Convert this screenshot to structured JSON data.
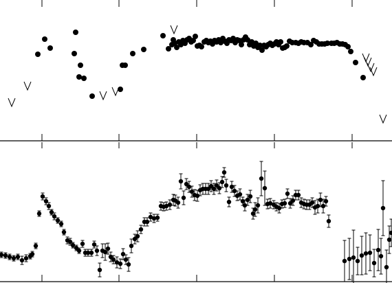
{
  "chart_data": [
    {
      "type": "scatter",
      "title": "",
      "xlabel": "",
      "ylabel": "",
      "xlim": [
        0,
        570
      ],
      "ylim": [
        0,
        205
      ],
      "grid": false,
      "series": [
        {
          "marker": "circle",
          "points": [
            [
              55,
              126
            ],
            [
              65,
              148
            ],
            [
              73,
              135
            ],
            [
              110,
              158
            ],
            [
              108,
              127
            ],
            [
              117,
              110
            ],
            [
              115,
              93
            ],
            [
              122,
              91
            ],
            [
              134,
              65
            ],
            [
              175,
              75
            ],
            [
              178,
              110
            ],
            [
              182,
              110
            ],
            [
              193,
              127
            ],
            [
              209,
              133
            ],
            [
              237,
              153
            ],
            [
              245,
              134
            ],
            [
              250,
              140
            ],
            [
              252,
              147
            ],
            [
              254,
              142
            ],
            [
              257,
              136
            ],
            [
              260,
              144
            ],
            [
              263,
              140
            ],
            [
              266,
              146
            ],
            [
              269,
              142
            ],
            [
              272,
              147
            ],
            [
              275,
              149
            ],
            [
              278,
              144
            ],
            [
              281,
              146
            ],
            [
              284,
              152
            ],
            [
              287,
              138
            ],
            [
              290,
              139
            ],
            [
              293,
              137
            ],
            [
              297,
              144
            ],
            [
              300,
              146
            ],
            [
              303,
              143
            ],
            [
              306,
              145
            ],
            [
              309,
              141
            ],
            [
              312,
              146
            ],
            [
              315,
              144
            ],
            [
              318,
              147
            ],
            [
              321,
              143
            ],
            [
              324,
              149
            ],
            [
              327,
              145
            ],
            [
              330,
              142
            ],
            [
              333,
              147
            ],
            [
              336,
              146
            ],
            [
              339,
              149
            ],
            [
              342,
              143
            ],
            [
              345,
              147
            ],
            [
              348,
              146
            ],
            [
              351,
              140
            ],
            [
              354,
              147
            ],
            [
              357,
              151
            ],
            [
              360,
              147
            ],
            [
              363,
              140
            ],
            [
              366,
              144
            ],
            [
              369,
              138
            ],
            [
              372,
              142
            ],
            [
              375,
              136
            ],
            [
              378,
              139
            ],
            [
              381,
              132
            ],
            [
              384,
              139
            ],
            [
              387,
              137
            ],
            [
              390,
              140
            ],
            [
              393,
              142
            ],
            [
              396,
              139
            ],
            [
              399,
              141
            ],
            [
              402,
              144
            ],
            [
              405,
              140
            ],
            [
              408,
              144
            ],
            [
              411,
              135
            ],
            [
              414,
              136
            ],
            [
              417,
              138
            ],
            [
              421,
              145
            ],
            [
              425,
              143
            ],
            [
              430,
              143
            ],
            [
              434,
              142
            ],
            [
              438,
              144
            ],
            [
              442,
              143
            ],
            [
              447,
              143
            ],
            [
              452,
              140
            ],
            [
              456,
              146
            ],
            [
              460,
              144
            ],
            [
              464,
              141
            ],
            [
              468,
              141
            ],
            [
              472,
              141
            ],
            [
              476,
              142
            ],
            [
              482,
              142
            ],
            [
              486,
              142
            ],
            [
              490,
              143
            ],
            [
              494,
              141
            ],
            [
              498,
              141
            ],
            [
              502,
              140
            ],
            [
              506,
              137
            ],
            [
              510,
              130
            ],
            [
              517,
              114
            ],
            [
              528,
              92
            ]
          ]
        },
        {
          "marker": "upper-limit",
          "points": [
            [
              17,
              56
            ],
            [
              40,
              80
            ],
            [
              150,
              66
            ],
            [
              168,
              72
            ],
            [
              253,
              162
            ],
            [
              532,
              121
            ],
            [
              535,
              115
            ],
            [
              539,
              107
            ],
            [
              543,
              101
            ],
            [
              557,
              32
            ]
          ]
        }
      ]
    },
    {
      "type": "scatter",
      "title": "",
      "xlabel": "",
      "ylabel": "",
      "xlim": [
        0,
        570
      ],
      "ylim": [
        0,
        205
      ],
      "grid": false,
      "series": [
        {
          "marker": "circle-errorbar",
          "points": [
            [
              2,
              41,
              4
            ],
            [
              8,
              40,
              4
            ],
            [
              14,
              38,
              4
            ],
            [
              20,
              36,
              4
            ],
            [
              26,
              38,
              4
            ],
            [
              32,
              33,
              6
            ],
            [
              38,
              36,
              5
            ],
            [
              44,
              39,
              4
            ],
            [
              47,
              42,
              4
            ],
            [
              52,
              54,
              4
            ],
            [
              57,
              101,
              4
            ],
            [
              62,
              126,
              5
            ],
            [
              67,
              119,
              5
            ],
            [
              71,
              112,
              5
            ],
            [
              75,
              103,
              4
            ],
            [
              79,
              97,
              5
            ],
            [
              84,
              91,
              4
            ],
            [
              89,
              86,
              4
            ],
            [
              93,
              74,
              4
            ],
            [
              98,
              62,
              5
            ],
            [
              102,
              60,
              5
            ],
            [
              106,
              55,
              4
            ],
            [
              111,
              51,
              4
            ],
            [
              115,
              47,
              4
            ],
            [
              120,
              57,
              5
            ],
            [
              124,
              44,
              5
            ],
            [
              128,
              44,
              5
            ],
            [
              133,
              44,
              5
            ],
            [
              137,
              56,
              5
            ],
            [
              141,
              47,
              7
            ],
            [
              145,
              19,
              10
            ],
            [
              149,
              47,
              10
            ],
            [
              153,
              45,
              12
            ],
            [
              157,
              50,
              8
            ],
            [
              161,
              38,
              7
            ],
            [
              165,
              34,
              6
            ],
            [
              170,
              30,
              8
            ],
            [
              175,
              28,
              7
            ],
            [
              179,
              42,
              8
            ],
            [
              183,
              34,
              7
            ],
            [
              187,
              27,
              10
            ],
            [
              191,
              54,
              10
            ],
            [
              196,
              64,
              7
            ],
            [
              200,
              68,
              8
            ],
            [
              205,
              78,
              6
            ],
            [
              210,
              89,
              6
            ],
            [
              214,
              89,
              6
            ],
            [
              219,
              96,
              6
            ],
            [
              224,
              94,
              6
            ],
            [
              229,
              95,
              5
            ],
            [
              234,
              112,
              6
            ],
            [
              238,
              111,
              6
            ],
            [
              242,
              112,
              6
            ],
            [
              247,
              114,
              7
            ],
            [
              252,
              121,
              8
            ],
            [
              255,
              120,
              8
            ],
            [
              259,
              117,
              8
            ],
            [
              263,
              148,
              11
            ],
            [
              267,
              124,
              10
            ],
            [
              271,
              144,
              8
            ],
            [
              275,
              140,
              8
            ],
            [
              279,
              133,
              8
            ],
            [
              283,
              128,
              8
            ],
            [
              287,
              127,
              8
            ],
            [
              291,
              135,
              8
            ],
            [
              295,
              137,
              8
            ],
            [
              299,
              137,
              8
            ],
            [
              303,
              137,
              8
            ],
            [
              307,
              141,
              8
            ],
            [
              311,
              137,
              8
            ],
            [
              315,
              142,
              8
            ],
            [
              319,
              138,
              8
            ],
            [
              323,
              147,
              8
            ],
            [
              326,
              161,
              7
            ],
            [
              329,
              142,
              9
            ],
            [
              333,
              118,
              7
            ],
            [
              337,
              140,
              8
            ],
            [
              341,
              134,
              8
            ],
            [
              345,
              127,
              7
            ],
            [
              349,
              129,
              8
            ],
            [
              353,
              119,
              6
            ],
            [
              356,
              113,
              8
            ],
            [
              360,
              121,
              8
            ],
            [
              364,
              126,
              9
            ],
            [
              368,
              101,
              8
            ],
            [
              371,
              107,
              10
            ],
            [
              375,
              113,
              11
            ],
            [
              380,
              152,
              25
            ],
            [
              385,
              138,
              25
            ],
            [
              389,
              115,
              7
            ],
            [
              393,
              116,
              7
            ],
            [
              398,
              114,
              6
            ],
            [
              402,
              111,
              6
            ],
            [
              406,
              109,
              7
            ],
            [
              410,
              115,
              6
            ],
            [
              414,
              116,
              6
            ],
            [
              418,
              130,
              7
            ],
            [
              422,
              116,
              7
            ],
            [
              426,
              120,
              7
            ],
            [
              430,
              128,
              7
            ],
            [
              434,
              128,
              7
            ],
            [
              438,
              117,
              7
            ],
            [
              442,
              115,
              7
            ],
            [
              446,
              114,
              7
            ],
            [
              450,
              114,
              7
            ],
            [
              454,
              117,
              7
            ],
            [
              458,
              110,
              10
            ],
            [
              462,
              112,
              10
            ],
            [
              466,
              121,
              10
            ],
            [
              470,
              112,
              10
            ],
            [
              474,
              119,
              7
            ],
            [
              478,
              90,
              9
            ],
            [
              501,
              32,
              30
            ],
            [
              508,
              35,
              30
            ],
            [
              514,
              37,
              40
            ],
            [
              520,
              32,
              20
            ],
            [
              526,
              40,
              28
            ],
            [
              532,
              43,
              30
            ],
            [
              538,
              44,
              26
            ],
            [
              544,
              29,
              20
            ],
            [
              550,
              48,
              30
            ],
            [
              554,
              39,
              26
            ],
            [
              557,
              109,
              40
            ],
            [
              562,
              23,
              25
            ],
            [
              566,
              63,
              20
            ],
            [
              569,
              73,
              20
            ]
          ]
        }
      ]
    }
  ]
}
